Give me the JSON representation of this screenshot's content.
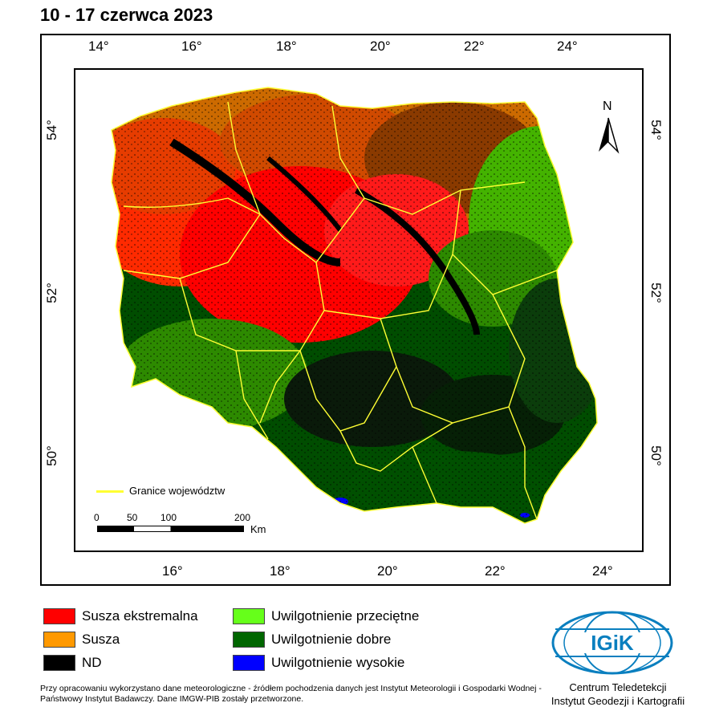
{
  "title": "10 - 17 czerwca 2023",
  "top_ticks": [
    "14°",
    "16°",
    "18°",
    "20°",
    "22°",
    "24°"
  ],
  "bottom_ticks": [
    "16°",
    "18°",
    "20°",
    "22°",
    "24°"
  ],
  "left_ticks": [
    "54°",
    "52°",
    "50°"
  ],
  "right_ticks": [
    "54°",
    "52°",
    "50°"
  ],
  "north_label": "N",
  "map_legend": {
    "boundary_label": "Granice województw",
    "boundary_color": "#ffff33"
  },
  "scale_bar": {
    "labels": [
      "0",
      "50",
      "100",
      "200"
    ],
    "unit": "Km"
  },
  "legend": [
    {
      "label": "Susza ekstremalna",
      "color": "#ff0000"
    },
    {
      "label": "Susza",
      "color": "#ff9900"
    },
    {
      "label": "ND",
      "color": "#000000"
    },
    {
      "label": "Uwilgotnienie przeciętne",
      "color": "#66ff1a"
    },
    {
      "label": "Uwilgotnienie dobre",
      "color": "#006600"
    },
    {
      "label": "Uwilgotnienie wysokie",
      "color": "#0000ff"
    }
  ],
  "footnote": "Przy opracowaniu wykorzystano dane meteorologiczne - źródłem pochodzenia danych jest Instytut Meteorologii i Gospodarki Wodnej - Państwowy Instytut Badawczy. Dane IMGW-PIB zostały przetworzone.",
  "credit_line1": "Centrum Teledetekcji",
  "credit_line2": "Instytut Geodezji i Kartografii",
  "logo_text": "IGiK"
}
